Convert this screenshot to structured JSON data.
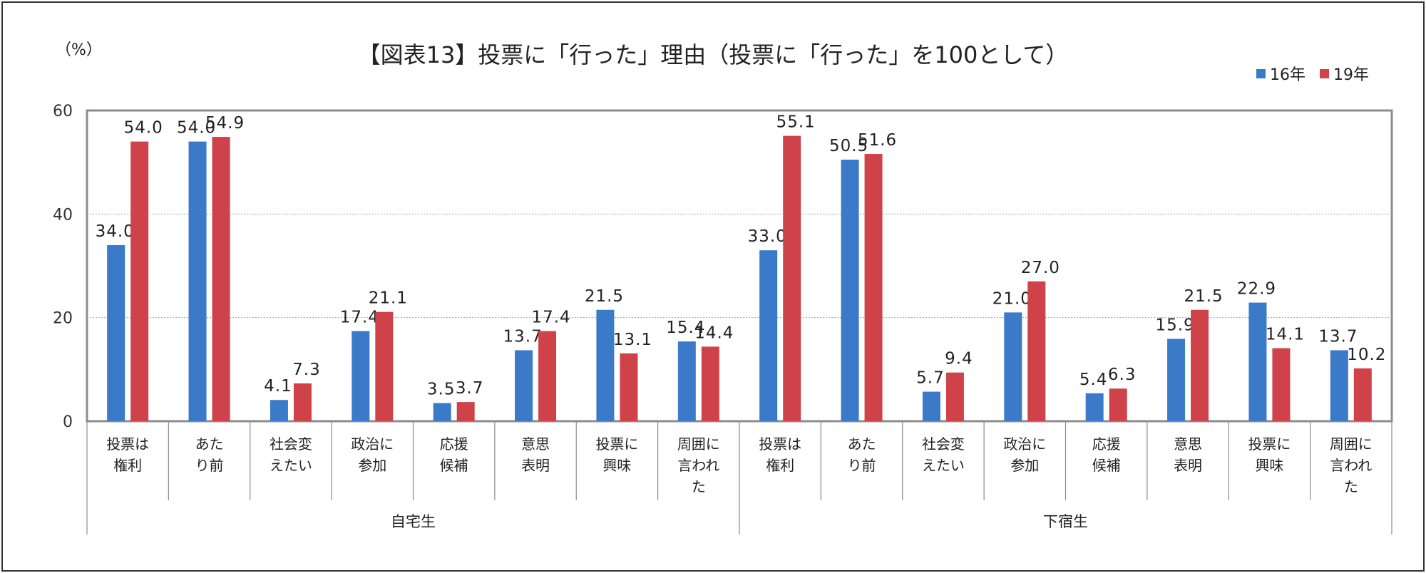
{
  "chart_data": {
    "type": "bar",
    "title": "【図表13】投票に「行った」理由（投票に「行った」を100として）",
    "y_unit": "（%）",
    "ylim": [
      0,
      60
    ],
    "yticks": [
      "0",
      "20",
      "40",
      "60"
    ],
    "legend_position": "top-right",
    "series": [
      {
        "name": "16年",
        "color": "#3a7ac8"
      },
      {
        "name": "19年",
        "color": "#d0424a"
      }
    ],
    "groups": [
      {
        "name": "自宅生",
        "categories": [
          {
            "label": [
              "投票は",
              "権利"
            ],
            "values": [
              34.0,
              54.0
            ],
            "labels": [
              "34.0",
              "54.0"
            ]
          },
          {
            "label": [
              "あた",
              "り前"
            ],
            "values": [
              54.0,
              54.9
            ],
            "labels": [
              "54.0",
              "54.9"
            ]
          },
          {
            "label": [
              "社会変",
              "えたい"
            ],
            "values": [
              4.1,
              7.3
            ],
            "labels": [
              "4.1",
              "7.3"
            ]
          },
          {
            "label": [
              "政治に",
              "参加"
            ],
            "values": [
              17.4,
              21.1
            ],
            "labels": [
              "17.4",
              "21.1"
            ]
          },
          {
            "label": [
              "応援",
              "候補"
            ],
            "values": [
              3.5,
              3.7
            ],
            "labels": [
              "3.5",
              "3.7"
            ]
          },
          {
            "label": [
              "意思",
              "表明"
            ],
            "values": [
              13.7,
              17.4
            ],
            "labels": [
              "13.7",
              "17.4"
            ]
          },
          {
            "label": [
              "投票に",
              "興味"
            ],
            "values": [
              21.5,
              13.1
            ],
            "labels": [
              "21.5",
              "13.1"
            ]
          },
          {
            "label": [
              "周囲に",
              "言われ",
              "た"
            ],
            "values": [
              15.4,
              14.4
            ],
            "labels": [
              "15.4",
              "14.4"
            ]
          }
        ]
      },
      {
        "name": "下宿生",
        "categories": [
          {
            "label": [
              "投票は",
              "権利"
            ],
            "values": [
              33.0,
              55.1
            ],
            "labels": [
              "33.0",
              "55.1"
            ]
          },
          {
            "label": [
              "あた",
              "り前"
            ],
            "values": [
              50.5,
              51.6
            ],
            "labels": [
              "50.5",
              "51.6"
            ]
          },
          {
            "label": [
              "社会変",
              "えたい"
            ],
            "values": [
              5.7,
              9.4
            ],
            "labels": [
              "5.7",
              "9.4"
            ]
          },
          {
            "label": [
              "政治に",
              "参加"
            ],
            "values": [
              21.0,
              27.0
            ],
            "labels": [
              "21.0",
              "27.0"
            ]
          },
          {
            "label": [
              "応援",
              "候補"
            ],
            "values": [
              5.4,
              6.3
            ],
            "labels": [
              "5.4",
              "6.3"
            ]
          },
          {
            "label": [
              "意思",
              "表明"
            ],
            "values": [
              15.9,
              21.5
            ],
            "labels": [
              "15.9",
              "21.5"
            ]
          },
          {
            "label": [
              "投票に",
              "興味"
            ],
            "values": [
              22.9,
              14.1
            ],
            "labels": [
              "22.9",
              "14.1"
            ]
          },
          {
            "label": [
              "周囲に",
              "言われ",
              "た"
            ],
            "values": [
              13.7,
              10.2
            ],
            "labels": [
              "13.7",
              "10.2"
            ]
          }
        ]
      }
    ]
  }
}
